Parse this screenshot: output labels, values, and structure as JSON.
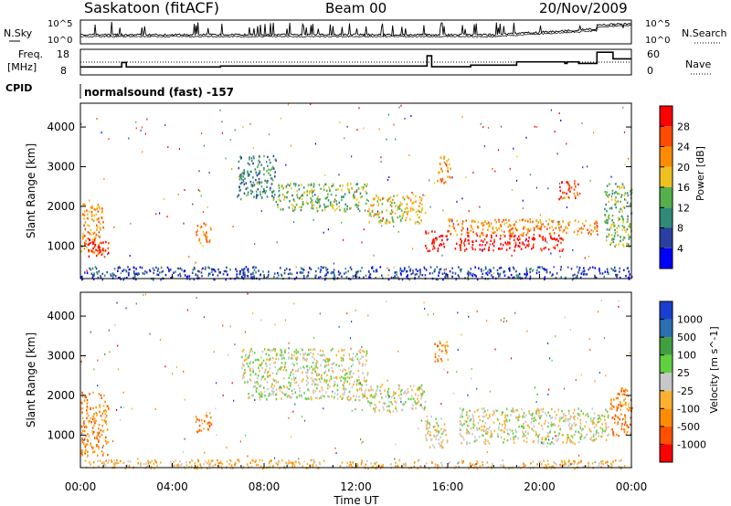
{
  "header": {
    "station": "Saskatoon (fitACF)",
    "beam": "Beam 00",
    "date": "20/Nov/2009"
  },
  "left_labels": {
    "nsky": "N.Sky",
    "freq_line1": "Freq.",
    "freq_line2": "[MHz]",
    "cpid": "CPID"
  },
  "right_labels": {
    "nsearch": "N.Search",
    "nave": "Nave"
  },
  "cpid_text": "normalsound (fast) -157",
  "colors": {
    "power_scale": [
      "#0000ff",
      "#2a3fa0",
      "#2f8a78",
      "#55b04a",
      "#f0c020",
      "#ff8c00",
      "#ff4a00",
      "#ff0000"
    ],
    "velocity_scale": [
      "#ff0000",
      "#ff5000",
      "#ff8c00",
      "#ffb030",
      "#c8c8c8",
      "#60d040",
      "#40a040",
      "#2a6fb0",
      "#1a3fd0"
    ],
    "ground_scatter": "#c8c8c8"
  },
  "chart_data": [
    {
      "type": "line",
      "name": "noise-panel",
      "ylabel_left": "N.Sky",
      "ylabel_right": "N.Search",
      "y_ticks_left": [
        "10^5",
        "10^0"
      ],
      "y_ticks_right": [
        "10^5",
        "10^0"
      ],
      "x_range_hours": [
        0,
        24
      ]
    },
    {
      "type": "line",
      "name": "frequency-nave-panel",
      "y_ticks_left": [
        "18",
        "8"
      ],
      "y_ticks_right": [
        "60",
        "0"
      ],
      "freq_steps": [
        [
          0,
          10.8
        ],
        [
          1.7,
          10.8
        ],
        [
          1.8,
          12.8
        ],
        [
          2.0,
          10.8
        ],
        [
          6.0,
          10.8
        ],
        [
          6.1,
          11.2
        ],
        [
          15.0,
          11.2
        ],
        [
          15.1,
          15.9
        ],
        [
          15.3,
          10.9
        ],
        [
          16.9,
          10.9
        ],
        [
          17.0,
          11.6
        ],
        [
          18.9,
          11.6
        ],
        [
          19.0,
          13.1
        ],
        [
          21.0,
          13.1
        ],
        [
          21.1,
          12.4
        ],
        [
          21.2,
          13.1
        ],
        [
          21.6,
          13.1
        ],
        [
          21.7,
          12.4
        ],
        [
          22.4,
          12.4
        ],
        [
          22.5,
          17.5
        ],
        [
          23.2,
          14.5
        ],
        [
          24,
          14.5
        ]
      ],
      "nave_dotted_value": 13.5
    },
    {
      "type": "heatmap",
      "name": "power-panel",
      "ylabel": "Slant Range [km]",
      "y_ticks": [
        1000,
        2000,
        3000,
        4000
      ],
      "ylim": [
        180,
        4600
      ],
      "colorbar_title": "Power [dB]",
      "colorbar_ticks": [
        "4",
        "8",
        "12",
        "16",
        "20",
        "24",
        "28"
      ],
      "regions": [
        {
          "x": [
            0.0,
            1.0
          ],
          "y": [
            800,
            2100
          ],
          "level": 5
        },
        {
          "x": [
            0.3,
            1.2
          ],
          "y": [
            700,
            1200
          ],
          "level": 7
        },
        {
          "x": [
            5.0,
            5.7
          ],
          "y": [
            1100,
            1600
          ],
          "level": 5
        },
        {
          "x": [
            6.8,
            8.5
          ],
          "y": [
            2200,
            3300
          ],
          "level": 2
        },
        {
          "x": [
            8.5,
            12.5
          ],
          "y": [
            1900,
            2600
          ],
          "level": 3
        },
        {
          "x": [
            12.5,
            15.0
          ],
          "y": [
            1600,
            2300
          ],
          "level": 4
        },
        {
          "x": [
            15.0,
            16.0
          ],
          "y": [
            900,
            1400
          ],
          "level": 7
        },
        {
          "x": [
            16.3,
            21.0
          ],
          "y": [
            900,
            1300
          ],
          "level": 7
        },
        {
          "x": [
            16.0,
            22.5
          ],
          "y": [
            1300,
            1700
          ],
          "level": 5
        },
        {
          "x": [
            15.5,
            16.1
          ],
          "y": [
            2600,
            3300
          ],
          "level": 5
        },
        {
          "x": [
            20.8,
            21.7
          ],
          "y": [
            2200,
            2700
          ],
          "level": 6
        },
        {
          "x": [
            22.8,
            24.0
          ],
          "y": [
            1000,
            2600
          ],
          "level": 3
        },
        {
          "x": [
            0.0,
            24.0
          ],
          "y": [
            180,
            500
          ],
          "level": 1
        }
      ]
    },
    {
      "type": "heatmap",
      "name": "velocity-panel",
      "ylabel": "Slant Range [km]",
      "y_ticks": [
        1000,
        2000,
        3000,
        4000
      ],
      "ylim": [
        180,
        4600
      ],
      "colorbar_title": "Velocity [m s^-1]",
      "colorbar_ticks": [
        "1000",
        "500",
        "100",
        "25",
        "-25",
        "-100",
        "-500",
        "-1000"
      ],
      "regions": [
        {
          "x": [
            0.0,
            1.2
          ],
          "y": [
            500,
            2100
          ],
          "level": 2
        },
        {
          "x": [
            5.0,
            5.7
          ],
          "y": [
            1100,
            1600
          ],
          "level": 2
        },
        {
          "x": [
            7.0,
            12.5
          ],
          "y": [
            1900,
            3200
          ],
          "level": 4
        },
        {
          "x": [
            12.5,
            15.0
          ],
          "y": [
            1600,
            2300
          ],
          "level": 4
        },
        {
          "x": [
            15.0,
            16.0
          ],
          "y": [
            700,
            1500
          ],
          "level": 4
        },
        {
          "x": [
            16.5,
            23.0
          ],
          "y": [
            800,
            1700
          ],
          "level": 4
        },
        {
          "x": [
            15.4,
            16.0
          ],
          "y": [
            2800,
            3400
          ],
          "level": 2
        },
        {
          "x": [
            23.0,
            24.0
          ],
          "y": [
            1000,
            2200
          ],
          "level": 2
        },
        {
          "x": [
            0.0,
            24.0
          ],
          "y": [
            180,
            400
          ],
          "level": 3
        }
      ]
    }
  ],
  "x_axis": {
    "ticks": [
      "00:00",
      "04:00",
      "08:00",
      "12:00",
      "16:00",
      "20:00",
      "00:00"
    ],
    "label": "Time UT"
  }
}
